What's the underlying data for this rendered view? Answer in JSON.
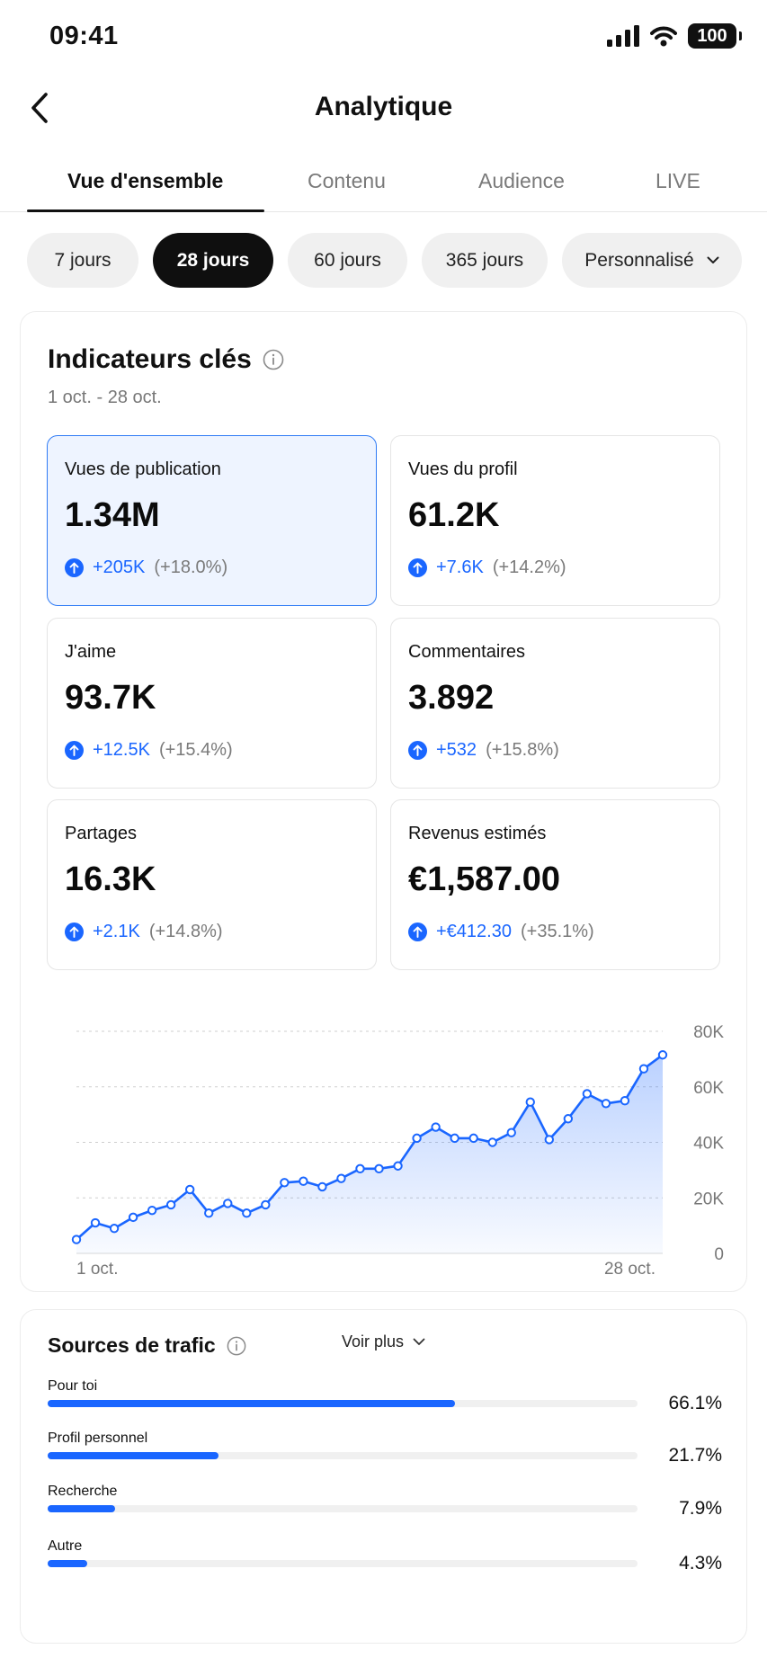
{
  "status_bar": {
    "time": "09:41",
    "battery": "100"
  },
  "header": {
    "title": "Analytique"
  },
  "tabs": [
    {
      "label": "Vue d'ensemble",
      "active": true
    },
    {
      "label": "Contenu",
      "active": false
    },
    {
      "label": "Audience",
      "active": false
    },
    {
      "label": "LIVE",
      "active": false
    }
  ],
  "periods": [
    {
      "label": "7 jours",
      "selected": false
    },
    {
      "label": "28 jours",
      "selected": true
    },
    {
      "label": "60 jours",
      "selected": false
    },
    {
      "label": "365 jours",
      "selected": false
    },
    {
      "label": "Personnalisé",
      "selected": false
    }
  ],
  "kpi": {
    "title": "Indicateurs clés",
    "date_range": "1 oct. - 28 oct.",
    "metrics": [
      {
        "label": "Vues de publication",
        "value": "1.34M",
        "change": "+205K",
        "change_pct": "(+18.0%)",
        "highlighted": true
      },
      {
        "label": "Vues du profil",
        "value": "61.2K",
        "change": "+7.6K",
        "change_pct": "(+14.2%)"
      },
      {
        "label": "J'aime",
        "value": "93.7K",
        "change": "+12.5K",
        "change_pct": "(+15.4%)"
      },
      {
        "label": "Commentaires",
        "value": "3.892",
        "change": "+532",
        "change_pct": "(+15.8%)"
      },
      {
        "label": "Partages",
        "value": "16.3K",
        "change": "+2.1K",
        "change_pct": "(+14.8%)"
      },
      {
        "label": "Revenus estimés",
        "value": "€1,587.00",
        "change": "+€412.30",
        "change_pct": "(+35.1%)"
      }
    ]
  },
  "chart_data": {
    "type": "area",
    "x_start_label": "1 oct.",
    "x_end_label": "28 oct.",
    "y_ticks": [
      "0",
      "20K",
      "40K",
      "60K",
      "80K"
    ],
    "ylim": [
      0,
      80000
    ],
    "grid": true,
    "color": "#1a66ff",
    "values": [
      5000,
      11000,
      9000,
      13000,
      15500,
      17500,
      23000,
      14500,
      18000,
      14500,
      17500,
      25500,
      26000,
      24000,
      27000,
      30500,
      30500,
      31500,
      41500,
      45500,
      41500,
      41500,
      40000,
      43500,
      54500,
      41000,
      48500,
      57500,
      54000,
      55000,
      66500,
      71500
    ]
  },
  "traffic": {
    "title": "Sources de trafic",
    "sources": [
      {
        "label": "Pour toi",
        "pct": "66.1%",
        "share": 0.691
      },
      {
        "label": "Profil personnel",
        "pct": "21.7%",
        "share": 0.289
      },
      {
        "label": "Recherche",
        "pct": "7.9%",
        "share": 0.115
      },
      {
        "label": "Autre",
        "pct": "4.3%",
        "share": 0.067
      }
    ],
    "see_more": "Voir plus"
  }
}
